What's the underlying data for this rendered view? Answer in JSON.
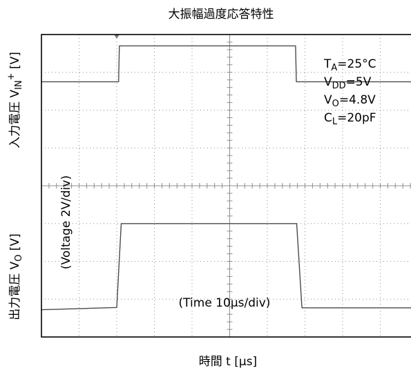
{
  "chart_data": {
    "type": "line",
    "title": "大振幅過度応答特性",
    "xlabel": "時間 t [μs]",
    "ylabels": {
      "top": {
        "main": "入力電圧 V",
        "sub": "IN",
        "sup": "+",
        "unit": " [V]"
      },
      "bottom": {
        "main": "出力電圧 V",
        "sub": "O",
        "unit": " [V]"
      }
    },
    "scale_annotations": {
      "voltage": "(Voltage 2V/div)",
      "time": "(Time 10μs/div)"
    },
    "conditions": [
      {
        "base": "T",
        "sub": "A",
        "rest": "=25°C"
      },
      {
        "base": "V",
        "sub": "DD",
        "rest": "=5V"
      },
      {
        "base": "V",
        "sub": "O",
        "rest": "=4.8V"
      },
      {
        "base": "C",
        "sub": "L",
        "rest": "=20pF"
      }
    ],
    "grid": {
      "x_divisions": 10,
      "y_divisions": 8,
      "x_unit_per_div_us": 10,
      "y_unit_per_div_V": 2
    },
    "series": [
      {
        "x_div": [
          0,
          2.05,
          2.07,
          6.75,
          6.77,
          10
        ],
        "y_div": [
          6.75,
          6.75,
          7.7,
          7.7,
          6.75,
          6.75
        ]
      },
      {
        "x_div": [
          0,
          2.0,
          2.12,
          6.78,
          6.92,
          10
        ],
        "y_div": [
          0.72,
          0.78,
          3.0,
          3.0,
          0.77,
          0.77
        ]
      }
    ],
    "colors": {
      "trace": "#4a4a4a",
      "grid": "#8c8c8c",
      "frame": "#000000"
    }
  }
}
